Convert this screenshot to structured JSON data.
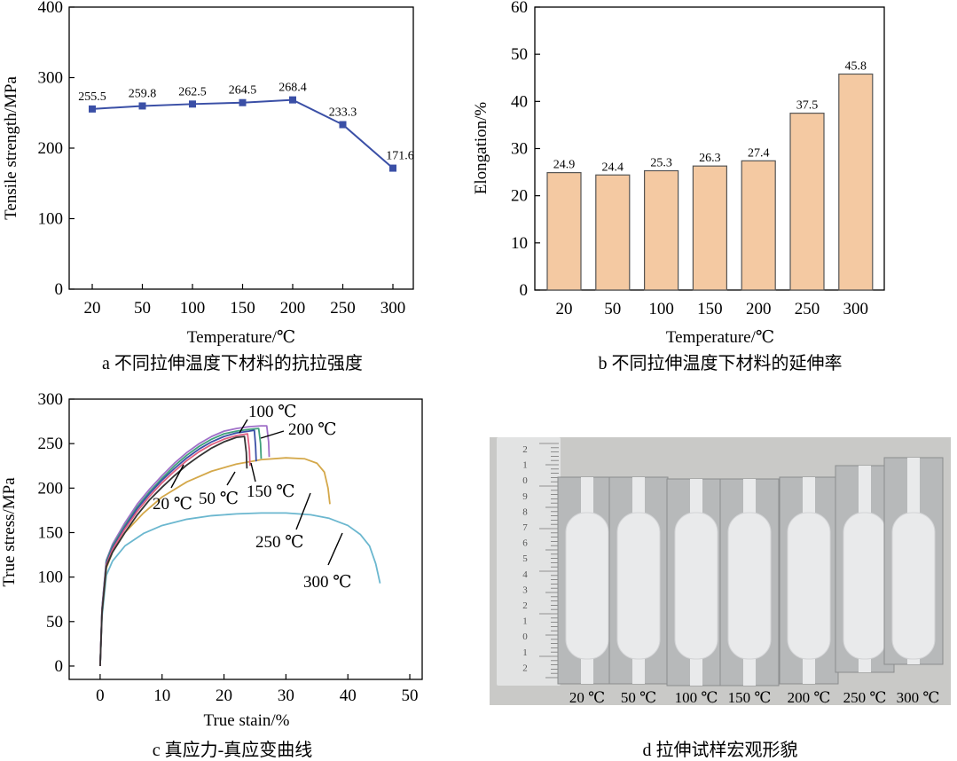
{
  "captions": {
    "a": "a  不同拉伸温度下材料的抗拉强度",
    "b": "b  不同拉伸温度下材料的延伸率",
    "c": "c  真应力-真应变曲线",
    "d": "d  拉伸试样宏观形貌"
  },
  "photo": {
    "specimen_labels": [
      "20 ℃",
      "50 ℃",
      "100 ℃",
      "150 ℃",
      "200 ℃",
      "250 ℃",
      "300 ℃"
    ],
    "ruler_numbers": [
      "2",
      "1",
      "0",
      "9",
      "8",
      "7",
      "6",
      "5",
      "4",
      "3",
      "2",
      "1",
      "0",
      "1",
      "2"
    ],
    "colors": {
      "background": "#c9c9c7",
      "specimen": "#e9eaeb",
      "ruler": "#e2e3e3"
    }
  },
  "chart_data": [
    {
      "id": "a",
      "type": "line",
      "xlabel": "Temperature/℃",
      "ylabel": "Tensile strength/MPa",
      "categories": [
        "20",
        "50",
        "100",
        "150",
        "200",
        "250",
        "300"
      ],
      "values": [
        255.5,
        259.8,
        262.5,
        264.5,
        268.4,
        233.3,
        171.6
      ],
      "value_labels": [
        "255.5",
        "259.8",
        "262.5",
        "264.5",
        "268.4",
        "233.3",
        "171.6"
      ],
      "ylim": [
        0,
        400
      ],
      "yticks": [
        "0",
        "100",
        "200",
        "300",
        "400"
      ],
      "color": "#3a4fa6",
      "grid": false
    },
    {
      "id": "b",
      "type": "bar",
      "xlabel": "Temperature/℃",
      "ylabel": "Elongation/%",
      "categories": [
        "20",
        "50",
        "100",
        "150",
        "200",
        "250",
        "300"
      ],
      "values": [
        24.9,
        24.4,
        25.3,
        26.3,
        27.4,
        37.5,
        45.8
      ],
      "value_labels": [
        "24.9",
        "24.4",
        "25.3",
        "26.3",
        "27.4",
        "37.5",
        "45.8"
      ],
      "ylim": [
        0,
        60
      ],
      "yticks": [
        "0",
        "10",
        "20",
        "30",
        "40",
        "50",
        "60"
      ],
      "color": "#f4c9a2",
      "grid": false
    },
    {
      "id": "c",
      "type": "line",
      "xlabel": "True stain/%",
      "ylabel": "True stress/MPa",
      "xlim": [
        -5,
        52
      ],
      "ylim": [
        -15,
        300
      ],
      "xticks": [
        "0",
        "10",
        "20",
        "30",
        "40",
        "50"
      ],
      "yticks": [
        "0",
        "50",
        "100",
        "150",
        "200",
        "250",
        "300"
      ],
      "grid": false,
      "series": [
        {
          "name": "20 ℃",
          "color": "#333333",
          "x": [
            0,
            0.3,
            1,
            2,
            4,
            6,
            8,
            10,
            12,
            14,
            16,
            18,
            20,
            22,
            23.3,
            23.6,
            23.7
          ],
          "y": [
            0,
            60,
            112,
            128,
            150,
            170,
            187,
            201,
            214,
            226,
            236,
            245,
            252,
            257,
            258,
            240,
            222
          ]
        },
        {
          "name": "50 ℃",
          "color": "#e06080",
          "x": [
            0,
            0.3,
            1,
            2,
            4,
            6,
            8,
            10,
            12,
            14,
            16,
            18,
            20,
            22,
            23.8,
            24.1,
            24.2
          ],
          "y": [
            0,
            62,
            114,
            131,
            154,
            174,
            191,
            206,
            219,
            231,
            241,
            249,
            255,
            259,
            261,
            243,
            225
          ]
        },
        {
          "name": "100 ℃",
          "color": "#3a4fa6",
          "x": [
            0,
            0.3,
            1,
            2,
            4,
            6,
            8,
            10,
            12,
            14,
            16,
            18,
            20,
            22,
            24,
            24.9,
            25.1,
            25.2
          ],
          "y": [
            0,
            63,
            116,
            133,
            156,
            177,
            194,
            209,
            222,
            234,
            244,
            252,
            258,
            262,
            264,
            265,
            247,
            230
          ]
        },
        {
          "name": "150 ℃",
          "color": "#3fa07a",
          "x": [
            0,
            0.3,
            1,
            2,
            4,
            6,
            8,
            10,
            12,
            14,
            16,
            18,
            20,
            22,
            24,
            25.6,
            25.9,
            26
          ],
          "y": [
            0,
            64,
            118,
            135,
            158,
            179,
            196,
            211,
            225,
            237,
            247,
            255,
            261,
            264,
            266,
            267,
            250,
            233
          ]
        },
        {
          "name": "200 ℃",
          "color": "#a070c8",
          "x": [
            0,
            0.3,
            1,
            2,
            4,
            6,
            8,
            10,
            12,
            14,
            16,
            18,
            20,
            22,
            24,
            26,
            26.9,
            27.2,
            27.3
          ],
          "y": [
            0,
            65,
            119,
            137,
            161,
            182,
            199,
            214,
            228,
            240,
            250,
            258,
            264,
            267,
            269,
            270,
            270,
            252,
            235
          ]
        },
        {
          "name": "250 ℃",
          "color": "#d4a84a",
          "x": [
            0,
            0.3,
            1,
            2,
            4,
            7,
            10,
            14,
            18,
            22,
            26,
            30,
            33,
            35,
            36.2,
            36.8,
            37.1
          ],
          "y": [
            0,
            60,
            110,
            128,
            150,
            172,
            190,
            207,
            219,
            227,
            232,
            234,
            233,
            228,
            218,
            200,
            182
          ]
        },
        {
          "name": "300 ℃",
          "color": "#6bb7cf",
          "x": [
            0,
            0.3,
            1,
            2,
            4,
            7,
            10,
            14,
            18,
            22,
            26,
            30,
            34,
            37,
            40,
            42,
            43.5,
            44.5,
            45.2
          ],
          "y": [
            0,
            55,
            102,
            118,
            135,
            149,
            158,
            165,
            169,
            171,
            172,
            172,
            170,
            166,
            158,
            148,
            135,
            115,
            93
          ]
        }
      ]
    }
  ]
}
